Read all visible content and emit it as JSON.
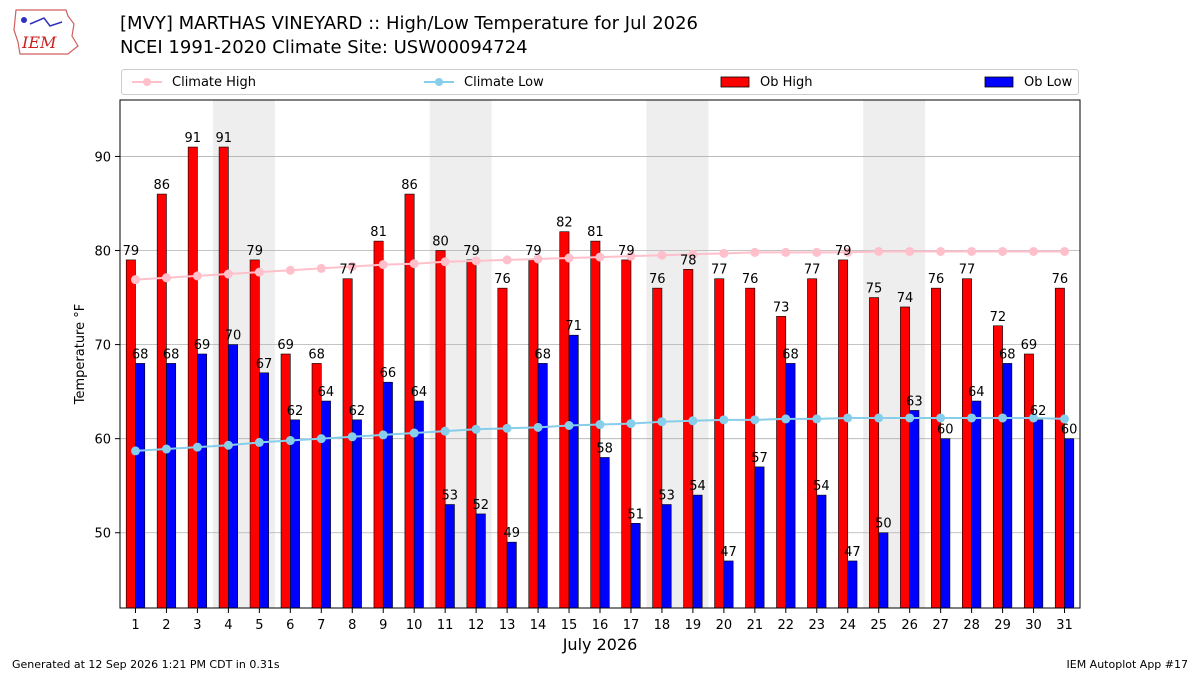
{
  "header": {
    "logo_text": "IEM",
    "title_line1": "[MVY] MARTHAS VINEYARD :: High/Low Temperature for Jul 2026",
    "title_line2": "NCEI 1991-2020 Climate Site: USW00094724"
  },
  "footer": {
    "generated": "Generated at 12 Sep 2026 1:21 PM CDT in 0.31s",
    "app": "IEM Autoplot App #17"
  },
  "colors": {
    "ob_high": "#ff0000",
    "ob_low": "#0000ff",
    "climate_high": "#ffc0cb",
    "climate_low": "#87ceeb",
    "weekend_shade": "#eeeeee",
    "grid": "#b0b0b0"
  },
  "chart_data": {
    "type": "bar",
    "title": "[MVY] MARTHAS VINEYARD :: High/Low Temperature for Jul 2026",
    "xlabel": "July 2026",
    "ylabel": "Temperature °F",
    "ylim": [
      42,
      96
    ],
    "yticks": [
      50,
      60,
      70,
      80,
      90
    ],
    "grid": true,
    "legend_position": "top",
    "shaded_days": [
      [
        4,
        5
      ],
      [
        11,
        12
      ],
      [
        18,
        19
      ],
      [
        25,
        26
      ]
    ],
    "categories": [
      "1",
      "2",
      "3",
      "4",
      "5",
      "6",
      "7",
      "8",
      "9",
      "10",
      "11",
      "12",
      "13",
      "14",
      "15",
      "16",
      "17",
      "18",
      "19",
      "20",
      "21",
      "22",
      "23",
      "24",
      "25",
      "26",
      "27",
      "28",
      "29",
      "30",
      "31"
    ],
    "series": [
      {
        "name": "Ob High",
        "kind": "bar",
        "values": [
          79,
          86,
          91,
          91,
          79,
          69,
          68,
          77,
          81,
          86,
          80,
          79,
          76,
          79,
          82,
          81,
          79,
          76,
          78,
          77,
          76,
          73,
          77,
          79,
          75,
          74,
          76,
          77,
          72,
          69,
          76
        ]
      },
      {
        "name": "Ob Low",
        "kind": "bar",
        "values": [
          68,
          68,
          69,
          70,
          67,
          62,
          64,
          62,
          66,
          64,
          53,
          52,
          49,
          68,
          71,
          58,
          51,
          53,
          54,
          47,
          57,
          68,
          54,
          47,
          50,
          63,
          60,
          64,
          68,
          62,
          60
        ]
      },
      {
        "name": "Climate High",
        "kind": "line",
        "values": [
          76.9,
          77.1,
          77.3,
          77.5,
          77.7,
          77.9,
          78.1,
          78.3,
          78.5,
          78.6,
          78.8,
          78.9,
          79.0,
          79.1,
          79.2,
          79.3,
          79.4,
          79.5,
          79.6,
          79.7,
          79.8,
          79.8,
          79.8,
          79.8,
          79.9,
          79.9,
          79.9,
          79.9,
          79.9,
          79.9,
          79.9
        ]
      },
      {
        "name": "Climate Low",
        "kind": "line",
        "values": [
          58.7,
          58.9,
          59.1,
          59.3,
          59.6,
          59.8,
          60.0,
          60.2,
          60.4,
          60.6,
          60.8,
          61.0,
          61.1,
          61.2,
          61.4,
          61.5,
          61.6,
          61.8,
          61.9,
          62.0,
          62.0,
          62.1,
          62.1,
          62.2,
          62.2,
          62.2,
          62.2,
          62.2,
          62.2,
          62.2,
          62.1
        ]
      }
    ]
  }
}
